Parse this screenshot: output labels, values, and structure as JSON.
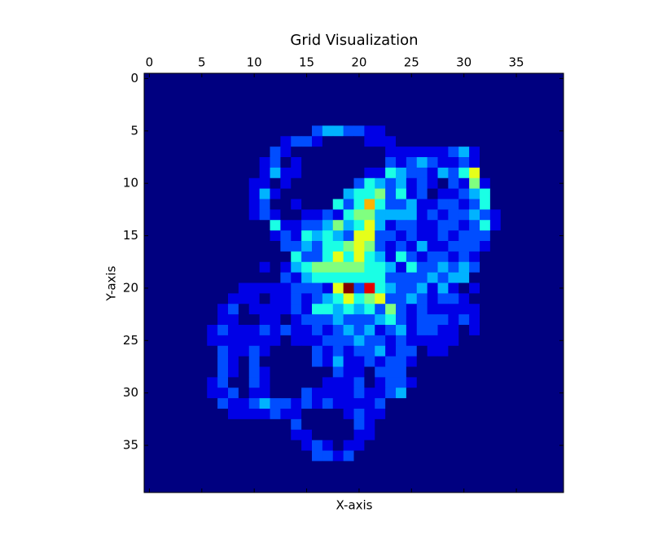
{
  "chart_data": {
    "type": "heatmap",
    "title": "Grid Visualization",
    "xlabel": "X-axis",
    "ylabel": "Y-axis",
    "colormap": "jet",
    "xlim": [
      -0.5,
      39.5
    ],
    "ylim": [
      39.5,
      -0.5
    ],
    "xticks": [
      0,
      5,
      10,
      15,
      20,
      25,
      30,
      35
    ],
    "yticks": [
      0,
      5,
      10,
      15,
      20,
      25,
      30,
      35
    ],
    "z": [
      [
        0,
        0,
        0,
        0,
        0,
        0,
        0,
        0,
        0,
        0,
        0,
        0,
        0,
        0,
        0,
        0,
        0,
        0,
        0,
        0,
        0,
        0,
        0,
        0,
        0,
        0,
        0,
        0,
        0,
        0,
        0,
        0,
        0,
        0,
        0,
        0,
        0,
        0,
        0,
        0
      ],
      [
        0,
        0,
        0,
        0,
        0,
        0,
        0,
        0,
        0,
        0,
        0,
        0,
        0,
        0,
        0,
        0,
        0,
        0,
        0,
        0,
        0,
        0,
        0,
        0,
        0,
        0,
        0,
        0,
        0,
        0,
        0,
        0,
        0,
        0,
        0,
        0,
        0,
        0,
        0,
        0
      ],
      [
        0,
        0,
        0,
        0,
        0,
        0,
        0,
        0,
        0,
        0,
        0,
        0,
        0,
        0,
        0,
        0,
        0,
        0,
        0,
        0,
        0,
        0,
        0,
        0,
        0,
        0,
        0,
        0,
        0,
        0,
        0,
        0,
        0,
        0,
        0,
        0,
        0,
        0,
        0,
        0
      ],
      [
        0,
        0,
        0,
        0,
        0,
        0,
        0,
        0,
        0,
        0,
        0,
        0,
        0,
        0,
        0,
        0,
        0,
        0,
        0,
        0,
        0,
        0,
        0,
        0,
        0,
        0,
        0,
        0,
        0,
        0,
        0,
        0,
        0,
        0,
        0,
        0,
        0,
        0,
        0,
        0
      ],
      [
        0,
        0,
        0,
        0,
        0,
        0,
        0,
        0,
        0,
        0,
        0,
        0,
        0,
        0,
        0,
        0,
        0,
        0,
        0,
        0,
        0,
        0,
        0,
        0,
        0,
        0,
        0,
        0,
        0,
        0,
        0,
        0,
        0,
        0,
        0,
        0,
        0,
        0,
        0,
        0
      ],
      [
        0,
        0,
        0,
        0,
        0,
        0,
        0,
        0,
        0,
        0,
        0,
        0,
        0,
        0,
        0,
        0,
        2,
        3,
        3,
        2,
        2,
        1,
        1,
        0,
        0,
        0,
        0,
        0,
        0,
        0,
        0,
        0,
        0,
        0,
        0,
        0,
        0,
        0,
        0,
        0
      ],
      [
        0,
        0,
        0,
        0,
        0,
        0,
        0,
        0,
        0,
        0,
        0,
        0,
        0,
        1,
        2,
        2,
        1,
        0,
        0,
        0,
        0,
        1,
        1,
        1,
        0,
        0,
        0,
        0,
        0,
        0,
        0,
        0,
        0,
        0,
        0,
        0,
        0,
        0,
        0,
        0
      ],
      [
        0,
        0,
        0,
        0,
        0,
        0,
        0,
        0,
        0,
        0,
        0,
        0,
        2,
        1,
        0,
        0,
        0,
        0,
        0,
        0,
        0,
        0,
        0,
        1,
        1,
        1,
        1,
        1,
        1,
        2,
        3,
        1,
        0,
        0,
        0,
        0,
        0,
        0,
        0,
        0
      ],
      [
        0,
        0,
        0,
        0,
        0,
        0,
        0,
        0,
        0,
        0,
        0,
        1,
        2,
        0,
        1,
        0,
        0,
        0,
        0,
        0,
        0,
        0,
        0,
        2,
        1,
        2,
        3,
        2,
        1,
        1,
        2,
        1,
        0,
        0,
        0,
        0,
        0,
        0,
        0,
        0
      ],
      [
        0,
        0,
        0,
        0,
        0,
        0,
        0,
        0,
        0,
        0,
        0,
        1,
        3,
        1,
        1,
        0,
        0,
        0,
        0,
        0,
        0,
        1,
        1,
        4,
        3,
        2,
        2,
        1,
        3,
        2,
        4,
        6,
        0,
        0,
        0,
        0,
        0,
        0,
        0,
        0
      ],
      [
        0,
        0,
        0,
        0,
        0,
        0,
        0,
        0,
        0,
        0,
        1,
        1,
        0,
        1,
        0,
        0,
        0,
        0,
        0,
        0,
        2,
        4,
        3,
        2,
        3,
        1,
        2,
        1,
        0,
        2,
        1,
        5,
        1,
        0,
        0,
        0,
        0,
        0,
        0,
        0
      ],
      [
        0,
        0,
        0,
        0,
        0,
        0,
        0,
        0,
        0,
        0,
        1,
        3,
        1,
        0,
        0,
        0,
        0,
        0,
        0,
        3,
        4,
        4,
        5,
        2,
        4,
        1,
        2,
        0,
        1,
        1,
        2,
        3,
        4,
        0,
        0,
        0,
        0,
        0,
        0,
        0
      ],
      [
        0,
        0,
        0,
        0,
        0,
        0,
        0,
        0,
        0,
        0,
        1,
        2,
        0,
        0,
        1,
        0,
        0,
        0,
        4,
        2,
        4,
        7,
        4,
        2,
        2,
        3,
        1,
        1,
        2,
        2,
        1,
        2,
        4,
        0,
        0,
        0,
        0,
        0,
        0,
        0
      ],
      [
        0,
        0,
        0,
        0,
        0,
        0,
        0,
        0,
        0,
        0,
        1,
        2,
        1,
        0,
        0,
        1,
        1,
        2,
        1,
        4,
        5,
        5,
        3,
        3,
        3,
        3,
        1,
        2,
        1,
        2,
        2,
        3,
        2,
        1,
        0,
        0,
        0,
        0,
        0,
        0
      ],
      [
        0,
        0,
        0,
        0,
        0,
        0,
        0,
        0,
        0,
        0,
        0,
        0,
        4,
        1,
        1,
        2,
        2,
        3,
        5,
        3,
        4,
        6,
        3,
        1,
        2,
        2,
        1,
        1,
        2,
        2,
        1,
        2,
        4,
        1,
        0,
        0,
        0,
        0,
        0,
        0
      ],
      [
        0,
        0,
        0,
        0,
        0,
        0,
        0,
        0,
        0,
        0,
        0,
        0,
        1,
        2,
        1,
        4,
        3,
        4,
        3,
        2,
        6,
        6,
        2,
        2,
        1,
        2,
        1,
        1,
        2,
        1,
        2,
        2,
        2,
        0,
        0,
        0,
        0,
        0,
        0,
        0
      ],
      [
        0,
        0,
        0,
        0,
        0,
        0,
        0,
        0,
        0,
        0,
        0,
        0,
        0,
        2,
        2,
        3,
        2,
        4,
        4,
        5,
        6,
        5,
        2,
        1,
        2,
        1,
        3,
        1,
        1,
        2,
        2,
        2,
        1,
        0,
        0,
        0,
        0,
        0,
        0,
        0
      ],
      [
        0,
        0,
        0,
        0,
        0,
        0,
        0,
        0,
        0,
        0,
        0,
        0,
        0,
        0,
        4,
        2,
        2,
        4,
        6,
        4,
        6,
        4,
        3,
        1,
        4,
        2,
        1,
        2,
        2,
        1,
        2,
        1,
        0,
        0,
        0,
        0,
        0,
        0,
        0,
        0
      ],
      [
        0,
        0,
        0,
        0,
        0,
        0,
        0,
        0,
        0,
        0,
        0,
        1,
        0,
        1,
        3,
        4,
        5,
        5,
        5,
        5,
        5,
        4,
        4,
        3,
        1,
        4,
        2,
        2,
        3,
        2,
        3,
        2,
        0,
        0,
        0,
        0,
        0,
        0,
        0,
        0
      ],
      [
        0,
        0,
        0,
        0,
        0,
        0,
        0,
        0,
        0,
        0,
        0,
        0,
        0,
        2,
        1,
        3,
        4,
        4,
        4,
        4,
        4,
        4,
        4,
        2,
        2,
        2,
        2,
        3,
        2,
        3,
        3,
        0,
        0,
        0,
        0,
        0,
        0,
        0,
        0,
        0
      ],
      [
        0,
        0,
        0,
        0,
        0,
        0,
        0,
        0,
        0,
        1,
        1,
        1,
        1,
        1,
        2,
        2,
        2,
        1,
        6,
        10,
        2,
        9,
        4,
        3,
        2,
        2,
        3,
        1,
        3,
        1,
        0,
        1,
        0,
        0,
        0,
        0,
        0,
        0,
        0,
        0
      ],
      [
        0,
        0,
        0,
        0,
        0,
        0,
        0,
        0,
        1,
        1,
        1,
        0,
        1,
        1,
        2,
        1,
        2,
        3,
        4,
        6,
        4,
        5,
        6,
        2,
        2,
        3,
        2,
        1,
        2,
        2,
        1,
        0,
        0,
        0,
        0,
        0,
        0,
        0,
        0,
        0
      ],
      [
        0,
        0,
        0,
        0,
        0,
        0,
        0,
        1,
        2,
        0,
        1,
        1,
        1,
        1,
        2,
        1,
        4,
        4,
        3,
        4,
        3,
        4,
        2,
        5,
        2,
        1,
        2,
        1,
        1,
        1,
        1,
        1,
        0,
        0,
        0,
        0,
        0,
        0,
        0,
        0
      ],
      [
        0,
        0,
        0,
        0,
        0,
        0,
        0,
        1,
        1,
        0,
        0,
        1,
        1,
        0,
        1,
        2,
        2,
        2,
        3,
        2,
        2,
        2,
        3,
        4,
        2,
        1,
        2,
        2,
        2,
        1,
        2,
        1,
        0,
        0,
        0,
        0,
        0,
        0,
        0,
        0
      ],
      [
        0,
        0,
        0,
        0,
        0,
        0,
        1,
        2,
        1,
        1,
        1,
        2,
        1,
        2,
        1,
        1,
        2,
        1,
        2,
        3,
        2,
        3,
        1,
        2,
        3,
        1,
        2,
        2,
        1,
        1,
        0,
        1,
        0,
        0,
        0,
        0,
        0,
        0,
        0,
        0
      ],
      [
        0,
        0,
        0,
        0,
        0,
        0,
        1,
        1,
        1,
        1,
        1,
        1,
        1,
        0,
        1,
        1,
        1,
        2,
        2,
        2,
        3,
        2,
        2,
        1,
        2,
        1,
        1,
        1,
        1,
        1,
        0,
        0,
        0,
        0,
        0,
        0,
        0,
        0,
        0,
        0
      ],
      [
        0,
        0,
        0,
        0,
        0,
        0,
        0,
        2,
        1,
        1,
        2,
        1,
        0,
        0,
        0,
        0,
        2,
        1,
        2,
        1,
        2,
        2,
        3,
        1,
        2,
        2,
        0,
        1,
        1,
        0,
        0,
        0,
        0,
        0,
        0,
        0,
        0,
        0,
        0,
        0
      ],
      [
        0,
        0,
        0,
        0,
        0,
        0,
        0,
        2,
        1,
        0,
        2,
        0,
        0,
        0,
        0,
        0,
        2,
        1,
        3,
        1,
        1,
        2,
        1,
        2,
        2,
        1,
        0,
        0,
        0,
        0,
        0,
        0,
        0,
        0,
        0,
        0,
        0,
        0,
        0,
        0
      ],
      [
        0,
        0,
        0,
        0,
        0,
        0,
        0,
        2,
        1,
        0,
        2,
        1,
        0,
        0,
        0,
        0,
        0,
        0,
        2,
        1,
        1,
        0,
        2,
        2,
        2,
        0,
        0,
        0,
        0,
        0,
        0,
        0,
        0,
        0,
        0,
        0,
        0,
        0,
        0,
        0
      ],
      [
        0,
        0,
        0,
        0,
        0,
        0,
        1,
        2,
        0,
        0,
        2,
        1,
        0,
        0,
        0,
        0,
        0,
        1,
        1,
        1,
        2,
        0,
        1,
        2,
        2,
        1,
        0,
        0,
        0,
        0,
        0,
        0,
        0,
        0,
        0,
        0,
        0,
        0,
        0,
        0
      ],
      [
        0,
        0,
        0,
        0,
        0,
        0,
        1,
        1,
        2,
        0,
        1,
        1,
        0,
        0,
        0,
        2,
        1,
        1,
        1,
        1,
        2,
        1,
        1,
        2,
        3,
        0,
        0,
        0,
        0,
        0,
        0,
        0,
        0,
        0,
        0,
        0,
        0,
        0,
        0,
        0
      ],
      [
        0,
        0,
        0,
        0,
        0,
        0,
        0,
        2,
        1,
        1,
        2,
        3,
        2,
        2,
        1,
        2,
        1,
        2,
        1,
        1,
        1,
        1,
        2,
        0,
        0,
        0,
        0,
        0,
        0,
        0,
        0,
        0,
        0,
        0,
        0,
        0,
        0,
        0,
        0,
        0
      ],
      [
        0,
        0,
        0,
        0,
        0,
        0,
        0,
        0,
        1,
        1,
        1,
        1,
        2,
        1,
        1,
        0,
        0,
        0,
        0,
        1,
        2,
        1,
        1,
        0,
        0,
        0,
        0,
        0,
        0,
        0,
        0,
        0,
        0,
        0,
        0,
        0,
        0,
        0,
        0,
        0
      ],
      [
        0,
        0,
        0,
        0,
        0,
        0,
        0,
        0,
        0,
        0,
        0,
        0,
        0,
        0,
        2,
        0,
        0,
        0,
        0,
        0,
        2,
        1,
        0,
        0,
        0,
        0,
        0,
        0,
        0,
        0,
        0,
        0,
        0,
        0,
        0,
        0,
        0,
        0,
        0,
        0
      ],
      [
        0,
        0,
        0,
        0,
        0,
        0,
        0,
        0,
        0,
        0,
        0,
        0,
        0,
        0,
        1,
        1,
        0,
        0,
        0,
        0,
        1,
        1,
        0,
        0,
        0,
        0,
        0,
        0,
        0,
        0,
        0,
        0,
        0,
        0,
        0,
        0,
        0,
        0,
        0,
        0
      ],
      [
        0,
        0,
        0,
        0,
        0,
        0,
        0,
        0,
        0,
        0,
        0,
        0,
        0,
        0,
        0,
        1,
        2,
        1,
        0,
        1,
        1,
        0,
        0,
        0,
        0,
        0,
        0,
        0,
        0,
        0,
        0,
        0,
        0,
        0,
        0,
        0,
        0,
        0,
        0,
        0
      ],
      [
        0,
        0,
        0,
        0,
        0,
        0,
        0,
        0,
        0,
        0,
        0,
        0,
        0,
        0,
        0,
        0,
        2,
        2,
        1,
        2,
        0,
        0,
        0,
        0,
        0,
        0,
        0,
        0,
        0,
        0,
        0,
        0,
        0,
        0,
        0,
        0,
        0,
        0,
        0,
        0
      ],
      [
        0,
        0,
        0,
        0,
        0,
        0,
        0,
        0,
        0,
        0,
        0,
        0,
        0,
        0,
        0,
        0,
        0,
        0,
        0,
        0,
        0,
        0,
        0,
        0,
        0,
        0,
        0,
        0,
        0,
        0,
        0,
        0,
        0,
        0,
        0,
        0,
        0,
        0,
        0,
        0
      ],
      [
        0,
        0,
        0,
        0,
        0,
        0,
        0,
        0,
        0,
        0,
        0,
        0,
        0,
        0,
        0,
        0,
        0,
        0,
        0,
        0,
        0,
        0,
        0,
        0,
        0,
        0,
        0,
        0,
        0,
        0,
        0,
        0,
        0,
        0,
        0,
        0,
        0,
        0,
        0,
        0
      ],
      [
        0,
        0,
        0,
        0,
        0,
        0,
        0,
        0,
        0,
        0,
        0,
        0,
        0,
        0,
        0,
        0,
        0,
        0,
        0,
        0,
        0,
        0,
        0,
        0,
        0,
        0,
        0,
        0,
        0,
        0,
        0,
        0,
        0,
        0,
        0,
        0,
        0,
        0,
        0,
        0
      ]
    ]
  }
}
